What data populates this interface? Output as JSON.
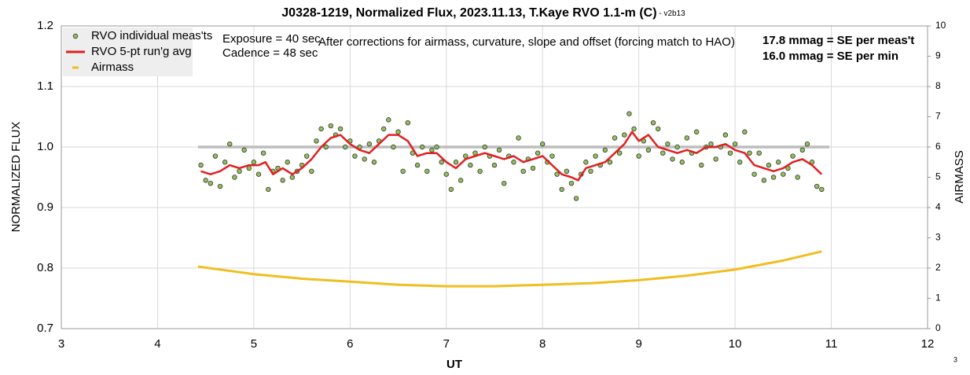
{
  "chart_data": {
    "type": "scatter",
    "title": "J0328-1219, Normalized Flux, 2023.11.13, T.Kaye RVO 1.1-m (C)",
    "subtitle": " - v2b13",
    "x_label": "UT",
    "y_label": "NORMALIZED FLUX",
    "y2_label": "AIRMASS",
    "annotations": [
      "Exposure = 40 sec",
      "Cadence = 48 sec",
      "After corrections for airmass, curvature, slope and offset (forcing match to HAO)",
      "17.8 mmag = SE per meas't",
      "16.0 mmag = SE per min"
    ],
    "page_number": "3",
    "xlim": [
      3,
      12
    ],
    "xticks": [
      3,
      4,
      5,
      6,
      7,
      8,
      9,
      10,
      11,
      12
    ],
    "ylim": [
      0.7,
      1.2
    ],
    "yticks": [
      0.7,
      0.8,
      0.9,
      {
        "value": 1.0,
        "label": "1.0"
      },
      1.1,
      1.2
    ],
    "y2lim": [
      0,
      10
    ],
    "y2ticks": [
      0,
      1,
      2,
      3,
      4,
      5,
      6,
      7,
      8,
      9,
      10
    ],
    "grid": true,
    "legend": "upper left",
    "series": [
      {
        "name": "RVO individual meas'ts",
        "type": "scatter",
        "color": "#92c05a",
        "x": [
          4.45,
          4.5,
          4.55,
          4.6,
          4.65,
          4.7,
          4.75,
          4.8,
          4.85,
          4.9,
          4.95,
          5.0,
          5.05,
          5.1,
          5.15,
          5.2,
          5.25,
          5.3,
          5.35,
          5.4,
          5.45,
          5.5,
          5.55,
          5.6,
          5.65,
          5.7,
          5.75,
          5.8,
          5.85,
          5.9,
          5.95,
          6.0,
          6.05,
          6.1,
          6.15,
          6.2,
          6.25,
          6.3,
          6.35,
          6.4,
          6.45,
          6.5,
          6.55,
          6.6,
          6.65,
          6.7,
          6.75,
          6.8,
          6.85,
          6.9,
          6.95,
          7.0,
          7.05,
          7.1,
          7.15,
          7.2,
          7.25,
          7.3,
          7.35,
          7.4,
          7.45,
          7.5,
          7.55,
          7.6,
          7.65,
          7.7,
          7.75,
          7.8,
          7.85,
          7.9,
          7.95,
          8.0,
          8.05,
          8.1,
          8.15,
          8.2,
          8.25,
          8.3,
          8.35,
          8.4,
          8.45,
          8.5,
          8.55,
          8.6,
          8.65,
          8.7,
          8.75,
          8.8,
          8.85,
          8.9,
          8.95,
          9.0,
          9.05,
          9.1,
          9.15,
          9.2,
          9.25,
          9.3,
          9.35,
          9.4,
          9.45,
          9.5,
          9.55,
          9.6,
          9.65,
          9.7,
          9.75,
          9.8,
          9.85,
          9.9,
          9.95,
          10.0,
          10.05,
          10.1,
          10.15,
          10.2,
          10.25,
          10.3,
          10.35,
          10.4,
          10.45,
          10.5,
          10.55,
          10.6,
          10.65,
          10.7,
          10.75,
          10.8,
          10.85,
          10.9
        ],
        "values": [
          0.97,
          0.945,
          0.94,
          0.985,
          0.935,
          0.975,
          1.005,
          0.95,
          0.96,
          0.995,
          0.965,
          0.975,
          0.955,
          0.99,
          0.93,
          0.96,
          0.965,
          0.945,
          0.975,
          0.95,
          0.96,
          0.97,
          0.985,
          0.96,
          1.01,
          1.03,
          1.0,
          1.035,
          1.02,
          1.03,
          1.0,
          1.01,
          0.985,
          1.0,
          0.98,
          1.005,
          0.975,
          1.01,
          1.03,
          1.045,
          1.0,
          1.025,
          0.96,
          1.04,
          0.99,
          0.97,
          1.0,
          0.96,
          0.995,
          1.0,
          0.975,
          0.955,
          0.93,
          0.975,
          0.945,
          0.985,
          0.97,
          0.99,
          0.96,
          1.0,
          0.985,
          0.97,
          0.995,
          0.94,
          0.985,
          0.975,
          1.015,
          0.96,
          0.98,
          0.965,
          0.99,
          1.005,
          0.975,
          0.985,
          0.955,
          0.93,
          0.96,
          0.94,
          0.915,
          0.955,
          0.975,
          0.96,
          0.985,
          0.97,
          0.995,
          0.975,
          1.015,
          0.99,
          1.02,
          1.055,
          1.03,
          0.985,
          1.01,
          0.995,
          1.04,
          1.03,
          0.99,
          1.005,
          0.98,
          1.0,
          0.975,
          1.015,
          0.99,
          1.025,
          0.97,
          1.0,
          1.005,
          0.98,
          1.0,
          1.02,
          0.99,
          1.005,
          0.975,
          1.025,
          0.99,
          0.955,
          0.99,
          0.945,
          0.97,
          0.95,
          0.975,
          0.955,
          0.965,
          0.985,
          0.95,
          0.995,
          1.005,
          0.975,
          0.935,
          0.93
        ]
      },
      {
        "name": "RVO 5-pt run'g avg",
        "type": "line",
        "color": "#e02020",
        "x": [
          4.45,
          4.55,
          4.65,
          4.75,
          4.85,
          4.95,
          5.05,
          5.12,
          5.2,
          5.3,
          5.4,
          5.5,
          5.6,
          5.7,
          5.8,
          5.9,
          6.0,
          6.1,
          6.2,
          6.3,
          6.4,
          6.5,
          6.6,
          6.7,
          6.8,
          6.9,
          7.0,
          7.1,
          7.2,
          7.3,
          7.4,
          7.5,
          7.6,
          7.7,
          7.8,
          7.9,
          8.0,
          8.1,
          8.2,
          8.3,
          8.37,
          8.45,
          8.55,
          8.65,
          8.75,
          8.85,
          8.93,
          9.0,
          9.1,
          9.2,
          9.3,
          9.4,
          9.5,
          9.6,
          9.7,
          9.8,
          9.9,
          10.0,
          10.1,
          10.2,
          10.3,
          10.4,
          10.5,
          10.6,
          10.7,
          10.8,
          10.9
        ],
        "values": [
          0.96,
          0.955,
          0.96,
          0.97,
          0.965,
          0.97,
          0.97,
          0.975,
          0.955,
          0.965,
          0.955,
          0.965,
          0.98,
          1.0,
          1.015,
          1.02,
          1.005,
          0.995,
          0.99,
          1.005,
          1.02,
          1.02,
          1.01,
          0.985,
          0.99,
          0.99,
          0.975,
          0.965,
          0.98,
          0.985,
          0.99,
          0.985,
          0.98,
          0.985,
          0.975,
          0.98,
          0.985,
          0.97,
          0.955,
          0.95,
          0.945,
          0.965,
          0.97,
          0.975,
          0.99,
          1.005,
          1.025,
          1.01,
          1.02,
          1.0,
          0.995,
          0.99,
          0.995,
          0.99,
          1.0,
          1.0,
          1.005,
          0.995,
          0.99,
          0.97,
          0.965,
          0.96,
          0.965,
          0.975,
          0.98,
          0.97,
          0.955
        ]
      },
      {
        "name": "Airmass",
        "type": "line",
        "axis": "y2",
        "color": "#f0be1e",
        "x": [
          4.42,
          5.0,
          5.5,
          6.0,
          6.5,
          7.0,
          7.5,
          8.0,
          8.5,
          9.0,
          9.5,
          10.0,
          10.5,
          10.9
        ],
        "values": [
          2.05,
          1.8,
          1.65,
          1.55,
          1.45,
          1.4,
          1.4,
          1.45,
          1.5,
          1.6,
          1.75,
          1.95,
          2.25,
          2.55
        ]
      },
      {
        "type": "line",
        "color": "#bdbdbd",
        "x": [
          4.42,
          10.98
        ],
        "values": [
          1.0,
          1.0
        ]
      }
    ]
  }
}
